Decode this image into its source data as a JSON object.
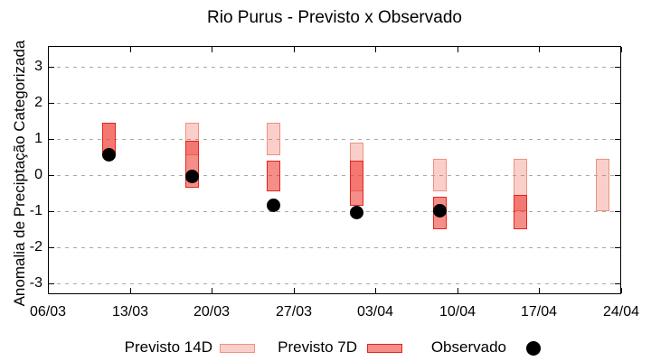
{
  "title": "Rio Purus - Previsto x Observado",
  "axis": {
    "ylabel": "Anomalia de Preciptação Categorizada",
    "y_ticks": [
      3,
      2,
      1,
      0,
      -1,
      -2,
      -3
    ],
    "x_ticks": [
      {
        "label": "06/03",
        "day": 0
      },
      {
        "label": "13/03",
        "day": 7
      },
      {
        "label": "20/03",
        "day": 14
      },
      {
        "label": "27/03",
        "day": 21
      },
      {
        "label": "03/04",
        "day": 28
      },
      {
        "label": "10/04",
        "day": 35
      },
      {
        "label": "17/04",
        "day": 42
      },
      {
        "label": "24/04",
        "day": 49
      }
    ]
  },
  "legend": {
    "previsto14_label": "Previsto 14D",
    "previsto7_label": "Previsto 7D",
    "observado_label": "Observado"
  },
  "colors": {
    "previsto14_fill": "rgba(240,105,90,0.32)",
    "previsto14_border": "#f0907e",
    "previsto7_fill": "rgba(237,50,40,0.55)",
    "previsto7_border": "#e8231a",
    "observado": "#000000",
    "grid": "#a9a9a9",
    "frame": "#000000"
  },
  "chart_data": {
    "type": "bar",
    "subtype": "forecast-range-candlesticks-with-observed-points",
    "title": "Rio Purus - Previsto x Observado",
    "xlabel": "",
    "ylabel": "Anomalia de Preciptação Categorizada",
    "ylim": [
      -3.3,
      3.55
    ],
    "grid": "horizontal-dashed",
    "legend_position": "bottom",
    "y_ticks": [
      -3,
      -2,
      -1,
      0,
      1,
      2,
      3
    ],
    "x_axis_date_ticks": [
      "06/03",
      "13/03",
      "20/03",
      "27/03",
      "03/04",
      "10/04",
      "17/04",
      "24/04"
    ],
    "categories": [
      "11/03",
      "18/03",
      "25/03",
      "01/04",
      "08/04",
      "15/04",
      "22/04"
    ],
    "x_day_offsets": [
      5.2,
      12.3,
      19.3,
      26.4,
      33.5,
      40.4,
      47.4
    ],
    "series": [
      {
        "name": "Previsto 14D",
        "type": "range",
        "ranges": [
          [
            0.55,
            1.45
          ],
          [
            0.55,
            1.45
          ],
          [
            0.55,
            1.45
          ],
          [
            -0.45,
            0.9
          ],
          [
            -0.45,
            0.45
          ],
          [
            -1.0,
            0.45
          ],
          [
            -1.0,
            0.45
          ]
        ]
      },
      {
        "name": "Previsto 7D",
        "type": "range",
        "ranges": [
          [
            0.55,
            1.45
          ],
          [
            -0.35,
            0.95
          ],
          [
            -0.45,
            0.4
          ],
          [
            -0.85,
            0.4
          ],
          [
            -1.5,
            -0.6
          ],
          [
            -1.5,
            -0.55
          ],
          null
        ]
      },
      {
        "name": "Observado",
        "type": "point",
        "values": [
          0.55,
          -0.05,
          -0.85,
          -1.05,
          -1.0,
          null,
          null
        ]
      }
    ]
  }
}
